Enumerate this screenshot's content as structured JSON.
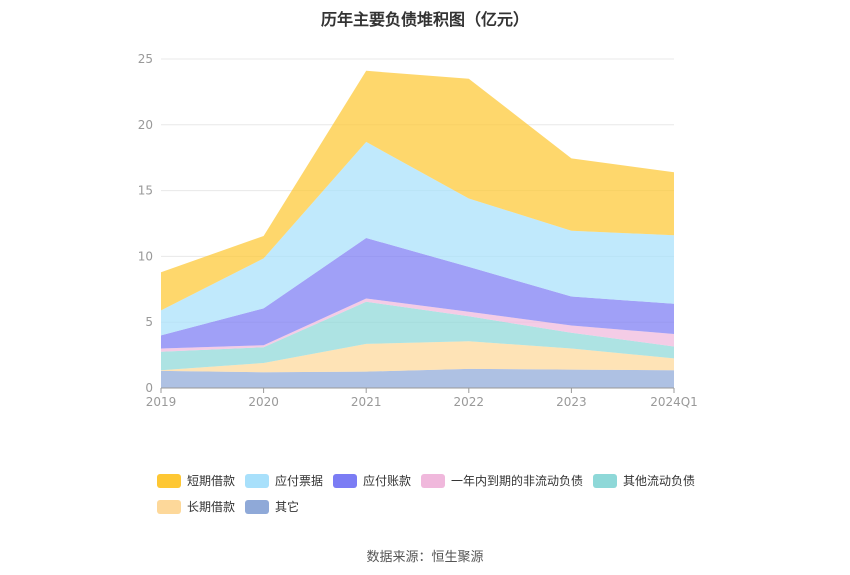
{
  "title": "历年主要负债堆积图（亿元）",
  "source": "数据来源：恒生聚源",
  "chart_data": {
    "type": "area",
    "stacked": true,
    "x": [
      "2019",
      "2020",
      "2021",
      "2022",
      "2023",
      "2024Q1"
    ],
    "ylim": [
      0,
      25
    ],
    "yticks": [
      0,
      5,
      10,
      15,
      20,
      25
    ],
    "grid": true,
    "legend_position": "bottom",
    "series": [
      {
        "name": "其它",
        "color": "#8fa9d8",
        "values": [
          1.3,
          1.2,
          1.25,
          1.45,
          1.4,
          1.35
        ]
      },
      {
        "name": "长期借款",
        "color": "#fdd89a",
        "values": [
          0.05,
          0.7,
          2.1,
          2.1,
          1.6,
          0.9
        ]
      },
      {
        "name": "其他流动负债",
        "color": "#8ed8d8",
        "values": [
          1.4,
          1.2,
          3.2,
          1.9,
          1.2,
          0.9
        ]
      },
      {
        "name": "一年内到期的非流动负债",
        "color": "#f0b8dc",
        "values": [
          0.25,
          0.15,
          0.25,
          0.35,
          0.55,
          0.95
        ]
      },
      {
        "name": "应付账款",
        "color": "#7b7cf4",
        "values": [
          1.0,
          2.8,
          4.6,
          3.4,
          2.2,
          2.3
        ]
      },
      {
        "name": "应付票据",
        "color": "#a8e0fb",
        "values": [
          1.9,
          3.8,
          7.3,
          5.2,
          5.0,
          5.2
        ]
      },
      {
        "name": "短期借款",
        "color": "#fec733",
        "values": [
          2.9,
          1.7,
          5.4,
          9.1,
          5.5,
          4.8
        ]
      }
    ]
  },
  "legend": [
    {
      "label": "短期借款",
      "color": "#fec733"
    },
    {
      "label": "应付票据",
      "color": "#a8e0fb"
    },
    {
      "label": "应付账款",
      "color": "#7b7cf4"
    },
    {
      "label": "一年内到期的非流动负债",
      "color": "#f0b8dc"
    },
    {
      "label": "其他流动负债",
      "color": "#8ed8d8"
    },
    {
      "label": "长期借款",
      "color": "#fdd89a"
    },
    {
      "label": "其它",
      "color": "#8fa9d8"
    }
  ]
}
